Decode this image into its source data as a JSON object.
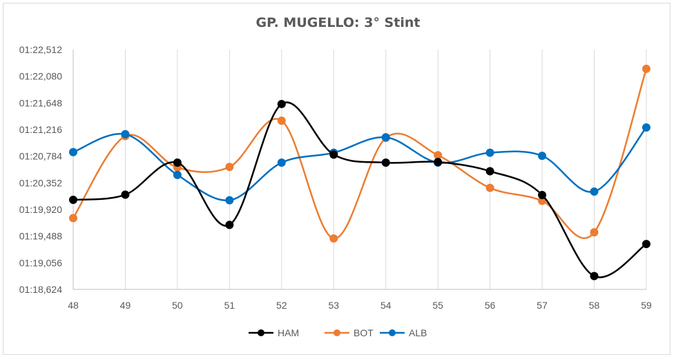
{
  "chart_data": {
    "type": "line",
    "title": "GP. MUGELLO: 3° Stint",
    "xlabel": "",
    "ylabel": "",
    "categories": [
      "48",
      "49",
      "50",
      "51",
      "52",
      "53",
      "54",
      "55",
      "56",
      "57",
      "58",
      "59"
    ],
    "y_ticks": [
      "01:18,624",
      "01:19,056",
      "01:19,488",
      "01:19,920",
      "01:20,352",
      "01:20,784",
      "01:21,216",
      "01:21,648",
      "01:22,080",
      "01:22,512"
    ],
    "ylim": [
      78.624,
      82.512
    ],
    "grid": "vertical",
    "legend_position": "bottom",
    "smoothed": true,
    "series": [
      {
        "name": "HAM",
        "color": "#000000",
        "values": [
          80.076,
          80.16,
          80.68,
          79.67,
          81.63,
          80.81,
          80.68,
          80.69,
          80.54,
          80.155,
          78.84,
          79.36
        ]
      },
      {
        "name": "BOT",
        "color": "#ed7d31",
        "values": [
          79.78,
          81.11,
          80.6,
          80.61,
          81.36,
          79.45,
          81.08,
          80.8,
          80.27,
          80.06,
          79.55,
          82.2
        ]
      },
      {
        "name": "ALB",
        "color": "#0070c0",
        "values": [
          80.85,
          81.14,
          80.48,
          80.07,
          80.68,
          80.84,
          81.09,
          80.68,
          80.84,
          80.79,
          80.21,
          81.25
        ]
      }
    ]
  }
}
